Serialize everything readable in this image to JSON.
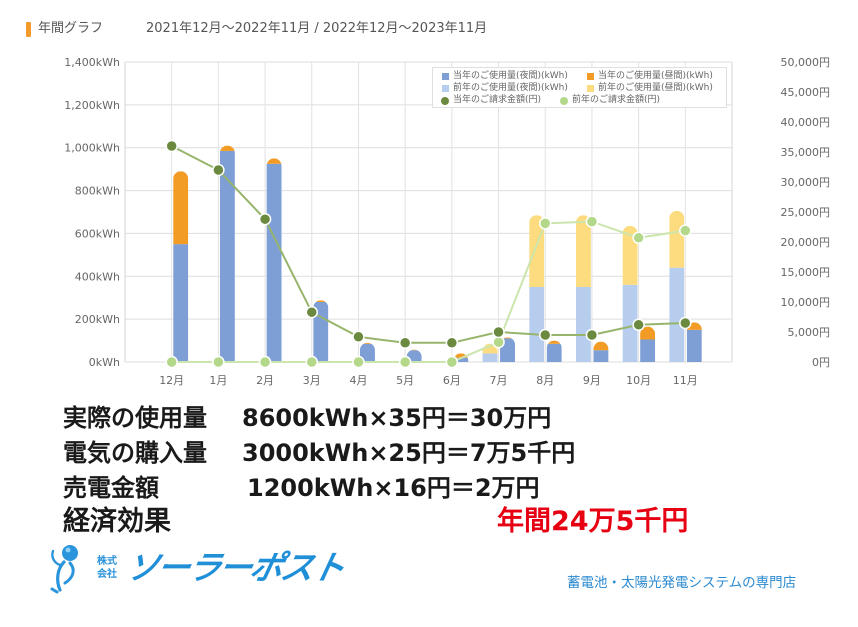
{
  "header": {
    "title_label": "年間グラフ",
    "period": "2021年12月～2022年11月 / 2022年12月～2023年11月",
    "marker_color": "#f39a2b"
  },
  "chart_data": {
    "type": "bar",
    "title": "年間グラフ",
    "subtitle": "2021年12月～2022年11月 / 2022年12月～2023年11月",
    "xlabel": "",
    "ylabel": "kWh",
    "y2label": "円",
    "grid": true,
    "legend_position": "top-right",
    "categories": [
      "12月",
      "1月",
      "2月",
      "3月",
      "4月",
      "5月",
      "6月",
      "7月",
      "8月",
      "9月",
      "10月",
      "11月"
    ],
    "y_left": {
      "min": 0,
      "max": 1400,
      "ticks": [
        0,
        200,
        400,
        600,
        800,
        1000,
        1200,
        1400
      ],
      "tick_labels": [
        "0kWh",
        "200kWh",
        "400kWh",
        "600kWh",
        "800kWh",
        "1,000kWh",
        "1,200kWh",
        "1,400kWh"
      ]
    },
    "y_right": {
      "min": 0,
      "max": 50000,
      "ticks": [
        0,
        5000,
        10000,
        15000,
        20000,
        25000,
        30000,
        35000,
        40000,
        45000,
        50000
      ],
      "tick_labels": [
        "0円",
        "5,000円",
        "10,000円",
        "15,000円",
        "20,000円",
        "25,000円",
        "30,000円",
        "35,000円",
        "40,000円",
        "45,000円",
        "50,000円"
      ]
    },
    "series": [
      {
        "name": "当年のご使用量(夜間)(kWh)",
        "type": "bar",
        "stack": "current",
        "axis": "left",
        "color": "#7d9fd6",
        "values": [
          550,
          985,
          925,
          280,
          85,
          55,
          20,
          110,
          85,
          55,
          105,
          150
        ]
      },
      {
        "name": "当年のご使用量(昼間)(kWh)",
        "type": "bar",
        "stack": "current",
        "axis": "left",
        "color": "#f39c25",
        "values": [
          340,
          25,
          25,
          8,
          5,
          3,
          20,
          5,
          15,
          40,
          60,
          35
        ]
      },
      {
        "name": "前年のご使用量(夜間)(kWh)",
        "type": "bar",
        "stack": "previous",
        "axis": "left",
        "color": "#b7cdee",
        "values": [
          0,
          0,
          0,
          0,
          0,
          0,
          0,
          40,
          350,
          350,
          360,
          440
        ]
      },
      {
        "name": "前年のご使用量(昼間)(kWh)",
        "type": "bar",
        "stack": "previous",
        "axis": "left",
        "color": "#fcdc7e",
        "values": [
          0,
          0,
          0,
          0,
          0,
          0,
          0,
          45,
          335,
          335,
          275,
          265
        ]
      },
      {
        "name": "当年のご請求金額(円)",
        "type": "line",
        "axis": "right",
        "color": "#6b8a3f",
        "line_color": "#97b46b",
        "values": [
          36000,
          32000,
          23800,
          8300,
          4200,
          3200,
          3200,
          5000,
          4500,
          4500,
          6200,
          6500
        ]
      },
      {
        "name": "前年のご請求金額(円)",
        "type": "line",
        "axis": "right",
        "color": "#b4d88a",
        "line_color": "#cbe5ad",
        "values": [
          0,
          0,
          0,
          0,
          0,
          0,
          0,
          3300,
          23100,
          23400,
          20700,
          21900
        ]
      }
    ]
  },
  "summary": {
    "rows": [
      {
        "label": "実際の使用量",
        "formula": "8600kWh×35円＝30万円"
      },
      {
        "label": "電気の購入量",
        "formula": "3000kWh×25円＝7万5千円"
      },
      {
        "label": "売電金額",
        "formula": "1200kWh×16円＝2万円"
      }
    ],
    "effect_label": "経済効果",
    "effect_value": "年間24万5千円",
    "effect_color": "#e60012"
  },
  "company": {
    "prefix_top": "株式",
    "prefix_bottom": "会社",
    "name": "ソーラーポスト",
    "tagline": "蓄電池・太陽光発電システムの専門店",
    "brand_color": "#1f8fd8"
  }
}
